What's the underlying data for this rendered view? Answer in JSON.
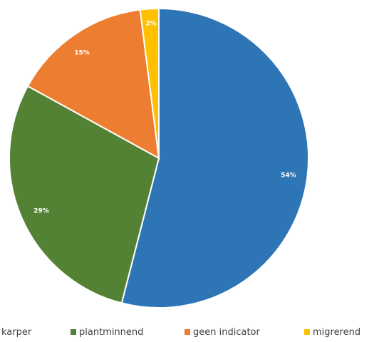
{
  "chart_data": {
    "type": "pie",
    "title": "",
    "slices": [
      {
        "label": "brasem karper",
        "display_label": "karper",
        "value": 54,
        "color": "#2E75B6"
      },
      {
        "label": "plantminnend",
        "display_label": "plantminnend",
        "value": 29,
        "color": "#548235"
      },
      {
        "label": "geen indicator",
        "display_label": "geen indicator",
        "value": 15,
        "color": "#ED7D31"
      },
      {
        "label": "migrerend",
        "display_label": "migrerend",
        "value": 2,
        "color": "#FFC000"
      }
    ],
    "data_labels": [
      "54%",
      "29%",
      "15%",
      "2%"
    ],
    "legend": {
      "placement": "bottom",
      "entries": [
        "karper",
        "plantminnend",
        "geen indicator",
        "migrerend"
      ]
    }
  }
}
